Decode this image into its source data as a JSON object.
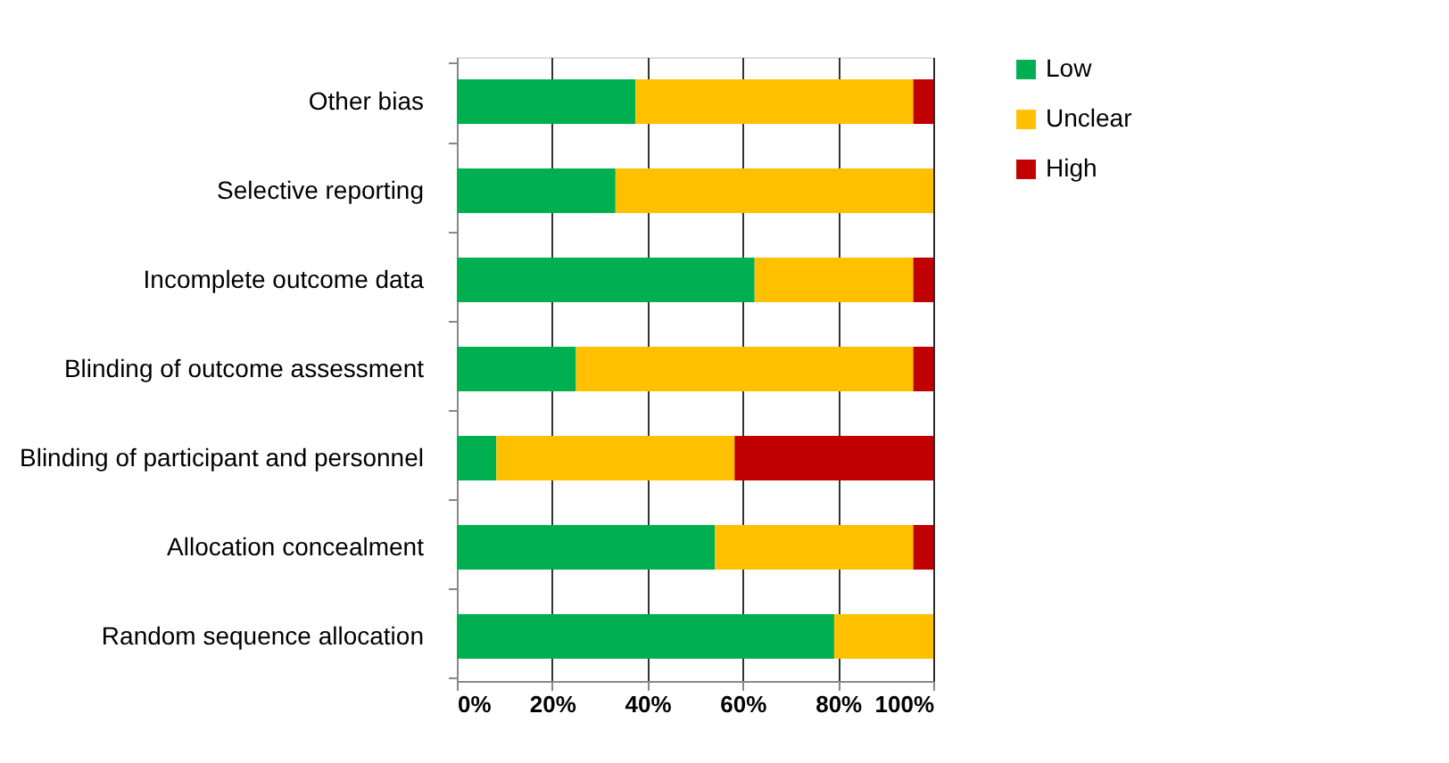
{
  "chart_data": {
    "type": "bar",
    "orientation": "horizontal",
    "stacked": true,
    "categories": [
      "Other bias",
      "Selective reporting",
      "Incomplete outcome data",
      "Blinding of outcome assessment",
      "Blinding of participant and personnel",
      "Allocation concealment",
      "Random sequence allocation"
    ],
    "series": [
      {
        "name": "Low",
        "color": "#00b050",
        "values": [
          37.5,
          33.3,
          62.5,
          25,
          8.3,
          54.2,
          79.2
        ]
      },
      {
        "name": "Unclear",
        "color": "#ffc000",
        "values": [
          58.3,
          66.7,
          33.3,
          70.8,
          50,
          41.6,
          20.8
        ]
      },
      {
        "name": "High",
        "color": "#c00000",
        "values": [
          4.2,
          0,
          4.2,
          4.2,
          41.7,
          4.2,
          0
        ]
      }
    ],
    "xlim": [
      0,
      100
    ],
    "xticks": [
      {
        "value": 0,
        "label": "0%"
      },
      {
        "value": 20,
        "label": "20%"
      },
      {
        "value": 40,
        "label": "40%"
      },
      {
        "value": 60,
        "label": "60%"
      },
      {
        "value": 80,
        "label": "80%"
      },
      {
        "value": 100,
        "label": "100%"
      }
    ],
    "grid": "x",
    "legend": "right"
  }
}
